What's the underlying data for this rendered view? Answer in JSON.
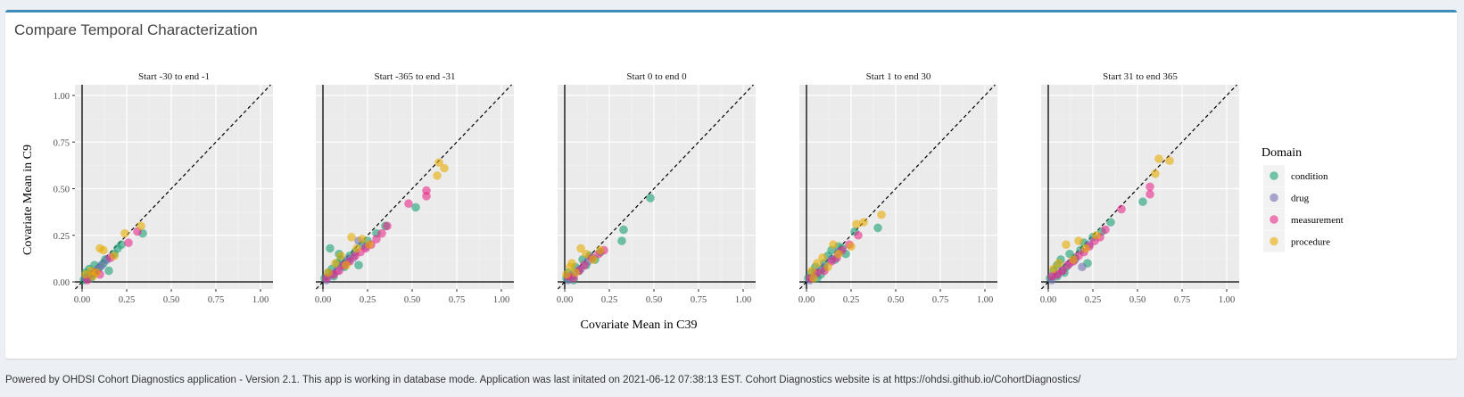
{
  "box": {
    "title": "Compare Temporal Characterization"
  },
  "footer": {
    "text": "Powered by OHDSI Cohort Diagnostics application - Version 2.1. This app is working in database mode. Application was last initated on 2021-06-12 07:38:13 EST. Cohort Diagnostics website is at https://ohdsi.github.io/CohortDiagnostics/"
  },
  "colors": {
    "accent": "#3c8dbc",
    "panel_bg": "#ebebeb",
    "page_bg": "#ecf0f5"
  },
  "chart_data": {
    "type": "scatter",
    "xlabel": "Covariate Mean in C39",
    "ylabel": "Covariate Mean in C9",
    "xlim": [
      0,
      1
    ],
    "ylim": [
      0,
      1
    ],
    "xticks": [
      "0.00",
      "0.25",
      "0.50",
      "0.75",
      "1.00"
    ],
    "yticks": [
      "0.00",
      "0.25",
      "0.50",
      "0.75",
      "1.00"
    ],
    "grid": true,
    "reference_line": "y = x (dashed)",
    "legend": {
      "title": "Domain",
      "position": "right",
      "entries": [
        {
          "name": "condition",
          "color": "#1b9e77"
        },
        {
          "name": "drug",
          "color": "#7570b3"
        },
        {
          "name": "measurement",
          "color": "#e7298a"
        },
        {
          "name": "procedure",
          "color": "#e6ab02"
        }
      ]
    },
    "facets": [
      {
        "title": "Start -30 to end -1",
        "series": [
          {
            "name": "condition",
            "points": [
              [
                0.01,
                0.01
              ],
              [
                0.02,
                0.05
              ],
              [
                0.03,
                0.03
              ],
              [
                0.04,
                0.07
              ],
              [
                0.06,
                0.04
              ],
              [
                0.08,
                0.06
              ],
              [
                0.1,
                0.08
              ],
              [
                0.12,
                0.1
              ],
              [
                0.15,
                0.06
              ],
              [
                0.18,
                0.15
              ],
              [
                0.2,
                0.18
              ],
              [
                0.22,
                0.2
              ],
              [
                0.34,
                0.26
              ],
              [
                0.05,
                0.02
              ],
              [
                0.07,
                0.09
              ],
              [
                0.13,
                0.12
              ]
            ]
          },
          {
            "name": "drug",
            "points": [
              [
                0.02,
                0.02
              ],
              [
                0.05,
                0.04
              ],
              [
                0.09,
                0.07
              ],
              [
                0.11,
                0.09
              ],
              [
                0.14,
                0.12
              ]
            ]
          },
          {
            "name": "measurement",
            "points": [
              [
                0.03,
                0.01
              ],
              [
                0.07,
                0.05
              ],
              [
                0.1,
                0.04
              ],
              [
                0.16,
                0.13
              ],
              [
                0.26,
                0.21
              ],
              [
                0.31,
                0.27
              ]
            ]
          },
          {
            "name": "procedure",
            "points": [
              [
                0.02,
                0.04
              ],
              [
                0.05,
                0.06
              ],
              [
                0.08,
                0.05
              ],
              [
                0.1,
                0.18
              ],
              [
                0.12,
                0.17
              ],
              [
                0.18,
                0.14
              ],
              [
                0.24,
                0.26
              ],
              [
                0.33,
                0.3
              ],
              [
                0.06,
                0.03
              ]
            ]
          }
        ]
      },
      {
        "title": "Start -365 to end -31",
        "series": [
          {
            "name": "condition",
            "points": [
              [
                0.01,
                0.02
              ],
              [
                0.03,
                0.05
              ],
              [
                0.05,
                0.07
              ],
              [
                0.04,
                0.18
              ],
              [
                0.08,
                0.1
              ],
              [
                0.1,
                0.12
              ],
              [
                0.12,
                0.08
              ],
              [
                0.15,
                0.14
              ],
              [
                0.18,
                0.16
              ],
              [
                0.2,
                0.09
              ],
              [
                0.22,
                0.2
              ],
              [
                0.25,
                0.22
              ],
              [
                0.3,
                0.26
              ],
              [
                0.35,
                0.3
              ],
              [
                0.52,
                0.4
              ],
              [
                0.06,
                0.03
              ],
              [
                0.09,
                0.15
              ],
              [
                0.14,
                0.11
              ]
            ]
          },
          {
            "name": "drug",
            "points": [
              [
                0.02,
                0.01
              ],
              [
                0.05,
                0.04
              ],
              [
                0.08,
                0.06
              ],
              [
                0.11,
                0.09
              ],
              [
                0.14,
                0.12
              ],
              [
                0.17,
                0.13
              ],
              [
                0.2,
                0.22
              ],
              [
                0.24,
                0.19
              ]
            ]
          },
          {
            "name": "measurement",
            "points": [
              [
                0.02,
                0.02
              ],
              [
                0.06,
                0.04
              ],
              [
                0.09,
                0.06
              ],
              [
                0.12,
                0.09
              ],
              [
                0.15,
                0.11
              ],
              [
                0.18,
                0.14
              ],
              [
                0.21,
                0.16
              ],
              [
                0.24,
                0.18
              ],
              [
                0.27,
                0.2
              ],
              [
                0.3,
                0.23
              ],
              [
                0.33,
                0.26
              ],
              [
                0.36,
                0.3
              ],
              [
                0.48,
                0.42
              ],
              [
                0.58,
                0.46
              ],
              [
                0.58,
                0.49
              ]
            ]
          },
          {
            "name": "procedure",
            "points": [
              [
                0.03,
                0.05
              ],
              [
                0.07,
                0.1
              ],
              [
                0.1,
                0.14
              ],
              [
                0.13,
                0.09
              ],
              [
                0.16,
                0.24
              ],
              [
                0.19,
                0.18
              ],
              [
                0.22,
                0.23
              ],
              [
                0.26,
                0.2
              ],
              [
                0.64,
                0.57
              ],
              [
                0.65,
                0.64
              ],
              [
                0.68,
                0.61
              ]
            ]
          }
        ]
      },
      {
        "title": "Start 0 to end 0",
        "series": [
          {
            "name": "condition",
            "points": [
              [
                0.01,
                0.02
              ],
              [
                0.02,
                0.05
              ],
              [
                0.04,
                0.03
              ],
              [
                0.06,
                0.08
              ],
              [
                0.08,
                0.06
              ],
              [
                0.1,
                0.12
              ],
              [
                0.12,
                0.09
              ],
              [
                0.14,
                0.14
              ],
              [
                0.17,
                0.12
              ],
              [
                0.2,
                0.16
              ],
              [
                0.32,
                0.22
              ],
              [
                0.33,
                0.28
              ],
              [
                0.48,
                0.45
              ],
              [
                0.05,
                0.01
              ]
            ]
          },
          {
            "name": "drug",
            "points": [
              [
                0.02,
                0.01
              ],
              [
                0.05,
                0.04
              ],
              [
                0.09,
                0.07
              ],
              [
                0.13,
                0.11
              ]
            ]
          },
          {
            "name": "measurement",
            "points": [
              [
                0.02,
                0.03
              ],
              [
                0.05,
                0.02
              ],
              [
                0.08,
                0.06
              ],
              [
                0.11,
                0.09
              ],
              [
                0.15,
                0.13
              ],
              [
                0.19,
                0.15
              ],
              [
                0.22,
                0.17
              ]
            ]
          },
          {
            "name": "procedure",
            "points": [
              [
                0.01,
                0.04
              ],
              [
                0.03,
                0.08
              ],
              [
                0.06,
                0.05
              ],
              [
                0.09,
                0.18
              ],
              [
                0.12,
                0.15
              ],
              [
                0.16,
                0.12
              ],
              [
                0.2,
                0.17
              ],
              [
                0.04,
                0.1
              ]
            ]
          }
        ]
      },
      {
        "title": "Start 1 to end 30",
        "series": [
          {
            "name": "condition",
            "points": [
              [
                0.01,
                0.02
              ],
              [
                0.03,
                0.05
              ],
              [
                0.05,
                0.08
              ],
              [
                0.08,
                0.04
              ],
              [
                0.1,
                0.1
              ],
              [
                0.12,
                0.14
              ],
              [
                0.14,
                0.17
              ],
              [
                0.16,
                0.12
              ],
              [
                0.18,
                0.19
              ],
              [
                0.2,
                0.18
              ],
              [
                0.22,
                0.15
              ],
              [
                0.27,
                0.27
              ],
              [
                0.4,
                0.29
              ],
              [
                0.06,
                0.02
              ],
              [
                0.09,
                0.07
              ]
            ]
          },
          {
            "name": "drug",
            "points": [
              [
                0.02,
                0.01
              ],
              [
                0.05,
                0.04
              ],
              [
                0.1,
                0.08
              ],
              [
                0.14,
                0.12
              ],
              [
                0.18,
                0.16
              ]
            ]
          },
          {
            "name": "measurement",
            "points": [
              [
                0.02,
                0.02
              ],
              [
                0.06,
                0.05
              ],
              [
                0.1,
                0.06
              ],
              [
                0.14,
                0.11
              ],
              [
                0.17,
                0.13
              ],
              [
                0.2,
                0.17
              ],
              [
                0.24,
                0.2
              ],
              [
                0.29,
                0.25
              ]
            ]
          },
          {
            "name": "procedure",
            "points": [
              [
                0.03,
                0.06
              ],
              [
                0.06,
                0.1
              ],
              [
                0.09,
                0.13
              ],
              [
                0.12,
                0.08
              ],
              [
                0.15,
                0.2
              ],
              [
                0.18,
                0.15
              ],
              [
                0.25,
                0.19
              ],
              [
                0.28,
                0.31
              ],
              [
                0.32,
                0.32
              ],
              [
                0.42,
                0.36
              ],
              [
                0.04,
                0.02
              ]
            ]
          }
        ]
      },
      {
        "title": "Start 31 to end 365",
        "series": [
          {
            "name": "condition",
            "points": [
              [
                0.01,
                0.02
              ],
              [
                0.03,
                0.06
              ],
              [
                0.05,
                0.09
              ],
              [
                0.07,
                0.12
              ],
              [
                0.1,
                0.08
              ],
              [
                0.12,
                0.15
              ],
              [
                0.15,
                0.13
              ],
              [
                0.18,
                0.17
              ],
              [
                0.2,
                0.21
              ],
              [
                0.22,
                0.1
              ],
              [
                0.25,
                0.24
              ],
              [
                0.3,
                0.27
              ],
              [
                0.35,
                0.32
              ],
              [
                0.53,
                0.43
              ],
              [
                0.05,
                0.03
              ],
              [
                0.09,
                0.05
              ]
            ]
          },
          {
            "name": "drug",
            "points": [
              [
                0.02,
                0.01
              ],
              [
                0.05,
                0.04
              ],
              [
                0.08,
                0.06
              ],
              [
                0.12,
                0.1
              ],
              [
                0.15,
                0.12
              ],
              [
                0.19,
                0.08
              ],
              [
                0.23,
                0.2
              ]
            ]
          },
          {
            "name": "measurement",
            "points": [
              [
                0.02,
                0.03
              ],
              [
                0.05,
                0.04
              ],
              [
                0.08,
                0.06
              ],
              [
                0.11,
                0.09
              ],
              [
                0.14,
                0.11
              ],
              [
                0.17,
                0.14
              ],
              [
                0.2,
                0.16
              ],
              [
                0.23,
                0.19
              ],
              [
                0.26,
                0.22
              ],
              [
                0.29,
                0.24
              ],
              [
                0.32,
                0.28
              ],
              [
                0.41,
                0.39
              ],
              [
                0.57,
                0.47
              ],
              [
                0.57,
                0.51
              ]
            ]
          },
          {
            "name": "procedure",
            "points": [
              [
                0.03,
                0.07
              ],
              [
                0.06,
                0.1
              ],
              [
                0.1,
                0.2
              ],
              [
                0.14,
                0.12
              ],
              [
                0.17,
                0.22
              ],
              [
                0.21,
                0.18
              ],
              [
                0.27,
                0.25
              ],
              [
                0.6,
                0.58
              ],
              [
                0.62,
                0.66
              ],
              [
                0.68,
                0.65
              ]
            ]
          }
        ]
      }
    ]
  }
}
